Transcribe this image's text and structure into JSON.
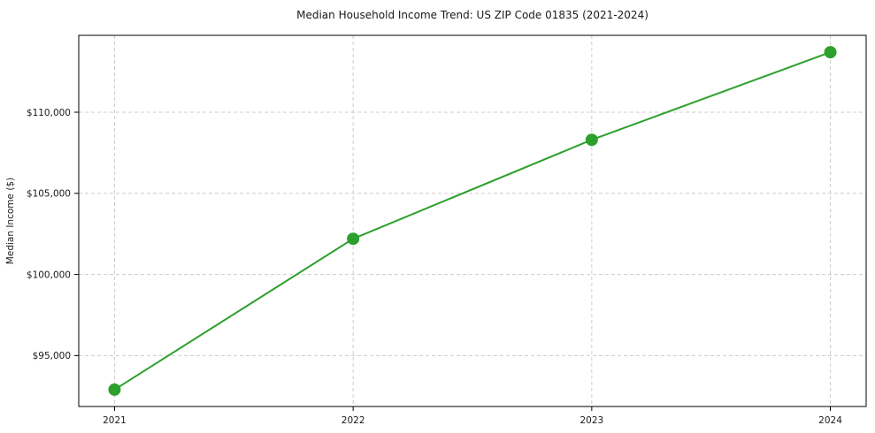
{
  "chart": {
    "title": "Median Household Income Trend: US ZIP Code 01835 (2021-2024)",
    "ylabel": "Median Income ($)",
    "xlabel": ""
  },
  "chart_data": {
    "type": "line",
    "title": "Median Household Income Trend: US ZIP Code 01835 (2021-2024)",
    "xlabel": "",
    "ylabel": "Median Income ($)",
    "categories": [
      "2021",
      "2022",
      "2023",
      "2024"
    ],
    "x": [
      2021,
      2022,
      2023,
      2024
    ],
    "series": [
      {
        "name": "Median Household Income",
        "values": [
          92900,
          102200,
          108300,
          113700
        ],
        "color": "#2ca02c",
        "marker": "circle"
      }
    ],
    "xlim": [
      2020.85,
      2024.15
    ],
    "ylim": [
      91860,
      114740
    ],
    "yticks": [
      95000,
      100000,
      105000,
      110000
    ],
    "ytick_labels": [
      "$95,000",
      "$100,000",
      "$105,000",
      "$110,000"
    ],
    "grid": true,
    "grid_style": "dashed",
    "legend": "none",
    "colors": {
      "line": "#2ca02c",
      "marker": "#2ca02c",
      "grid": "#cccccc",
      "axis_border": "#000000",
      "background": "#ffffff",
      "text": "#1a1a1a"
    }
  }
}
